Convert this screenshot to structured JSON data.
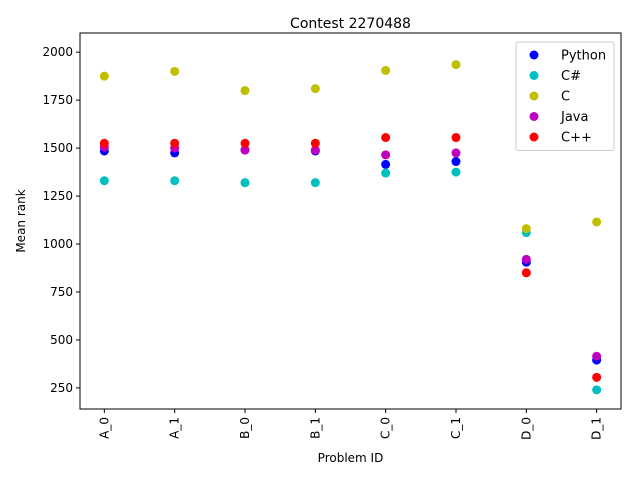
{
  "chart_data": {
    "type": "scatter",
    "title": "Contest 2270488",
    "xlabel": "Problem ID",
    "ylabel": "Mean rank",
    "categories": [
      "A_0",
      "A_1",
      "B_0",
      "B_1",
      "C_0",
      "C_1",
      "D_0",
      "D_1"
    ],
    "ylim": [
      140,
      2100
    ],
    "yticks": [
      250,
      500,
      750,
      1000,
      1250,
      1500,
      1750,
      2000
    ],
    "grid": false,
    "legend_position": "top-right",
    "series": [
      {
        "name": "Python",
        "color": "#0000ff",
        "values": [
          1485,
          1475,
          1490,
          1485,
          1415,
          1430,
          905,
          395
        ]
      },
      {
        "name": "C#",
        "color": "#00bfbf",
        "values": [
          1330,
          1330,
          1320,
          1320,
          1370,
          1375,
          1060,
          240
        ]
      },
      {
        "name": "C",
        "color": "#bfbf00",
        "values": [
          1875,
          1900,
          1800,
          1810,
          1905,
          1935,
          1080,
          1115
        ]
      },
      {
        "name": "Java",
        "color": "#bf00bf",
        "values": [
          1505,
          1500,
          1490,
          1490,
          1465,
          1475,
          920,
          415
        ]
      },
      {
        "name": "C++",
        "color": "#ff0000",
        "values": [
          1525,
          1525,
          1525,
          1525,
          1555,
          1555,
          850,
          305
        ]
      }
    ]
  }
}
